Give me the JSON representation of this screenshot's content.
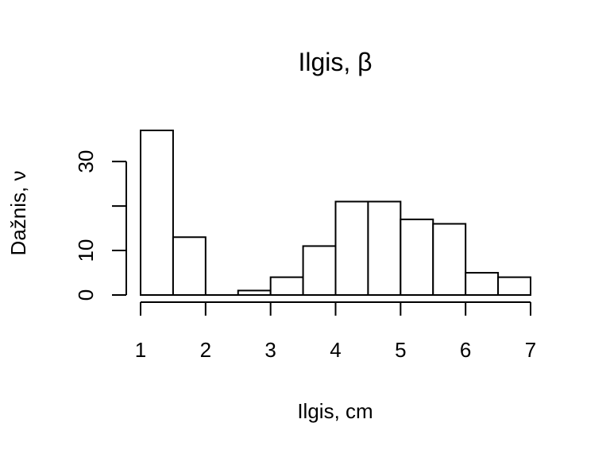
{
  "chart_data": {
    "type": "bar",
    "title": "Ilgis, β",
    "xlabel": "Ilgis, cm",
    "ylabel": "Dažnis, ν",
    "bins": [
      {
        "start": 1.0,
        "end": 1.5,
        "value": 37
      },
      {
        "start": 1.5,
        "end": 2.0,
        "value": 13
      },
      {
        "start": 2.0,
        "end": 2.5,
        "value": 0
      },
      {
        "start": 2.5,
        "end": 3.0,
        "value": 1
      },
      {
        "start": 3.0,
        "end": 3.5,
        "value": 4
      },
      {
        "start": 3.5,
        "end": 4.0,
        "value": 11
      },
      {
        "start": 4.0,
        "end": 4.5,
        "value": 21
      },
      {
        "start": 4.5,
        "end": 5.0,
        "value": 21
      },
      {
        "start": 5.0,
        "end": 5.5,
        "value": 17
      },
      {
        "start": 5.5,
        "end": 6.0,
        "value": 16
      },
      {
        "start": 6.0,
        "end": 6.5,
        "value": 5
      },
      {
        "start": 6.5,
        "end": 7.0,
        "value": 4
      }
    ],
    "xlim": [
      1,
      7
    ],
    "ylim": [
      0,
      37
    ],
    "x_ticks": [
      1,
      2,
      3,
      4,
      5,
      6,
      7
    ],
    "x_tick_labels": [
      "1",
      "2",
      "3",
      "4",
      "5",
      "6",
      "7"
    ],
    "y_ticks": [
      0,
      10,
      20,
      30
    ],
    "y_tick_labels": [
      "0",
      "10",
      "",
      "30"
    ],
    "grid": false,
    "legend": "none"
  }
}
